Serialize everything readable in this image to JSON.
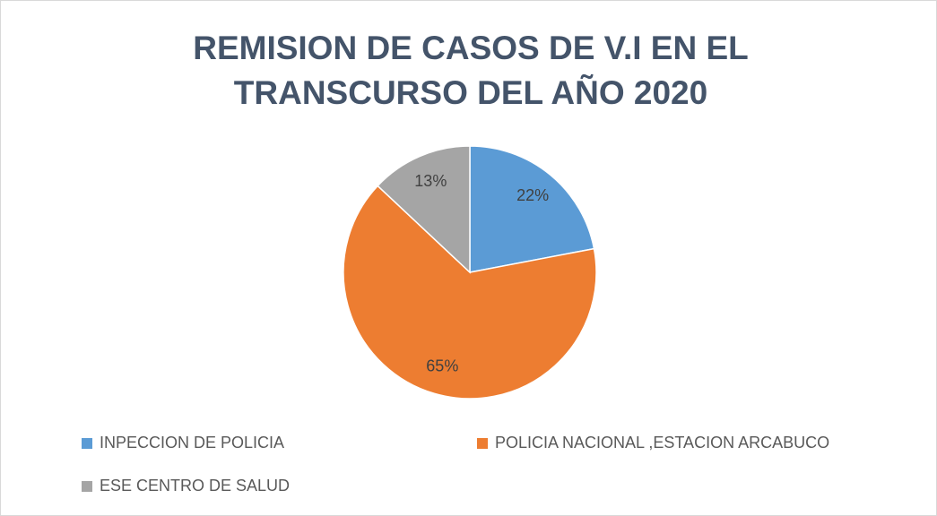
{
  "chart_data": {
    "type": "pie",
    "title": [
      "REMISION DE CASOS DE V.I EN EL",
      "TRANSCURSO DEL AÑO 2020"
    ],
    "categories": [
      "INPECCION DE POLICIA",
      "POLICIA NACIONAL ,ESTACION ARCABUCO",
      "ESE CENTRO DE SALUD"
    ],
    "values": [
      22,
      65,
      13
    ],
    "value_labels": [
      "22%",
      "65%",
      "13%"
    ],
    "colors": [
      "#5b9bd5",
      "#ed7d31",
      "#a5a5a5"
    ],
    "legend": "bottom"
  }
}
